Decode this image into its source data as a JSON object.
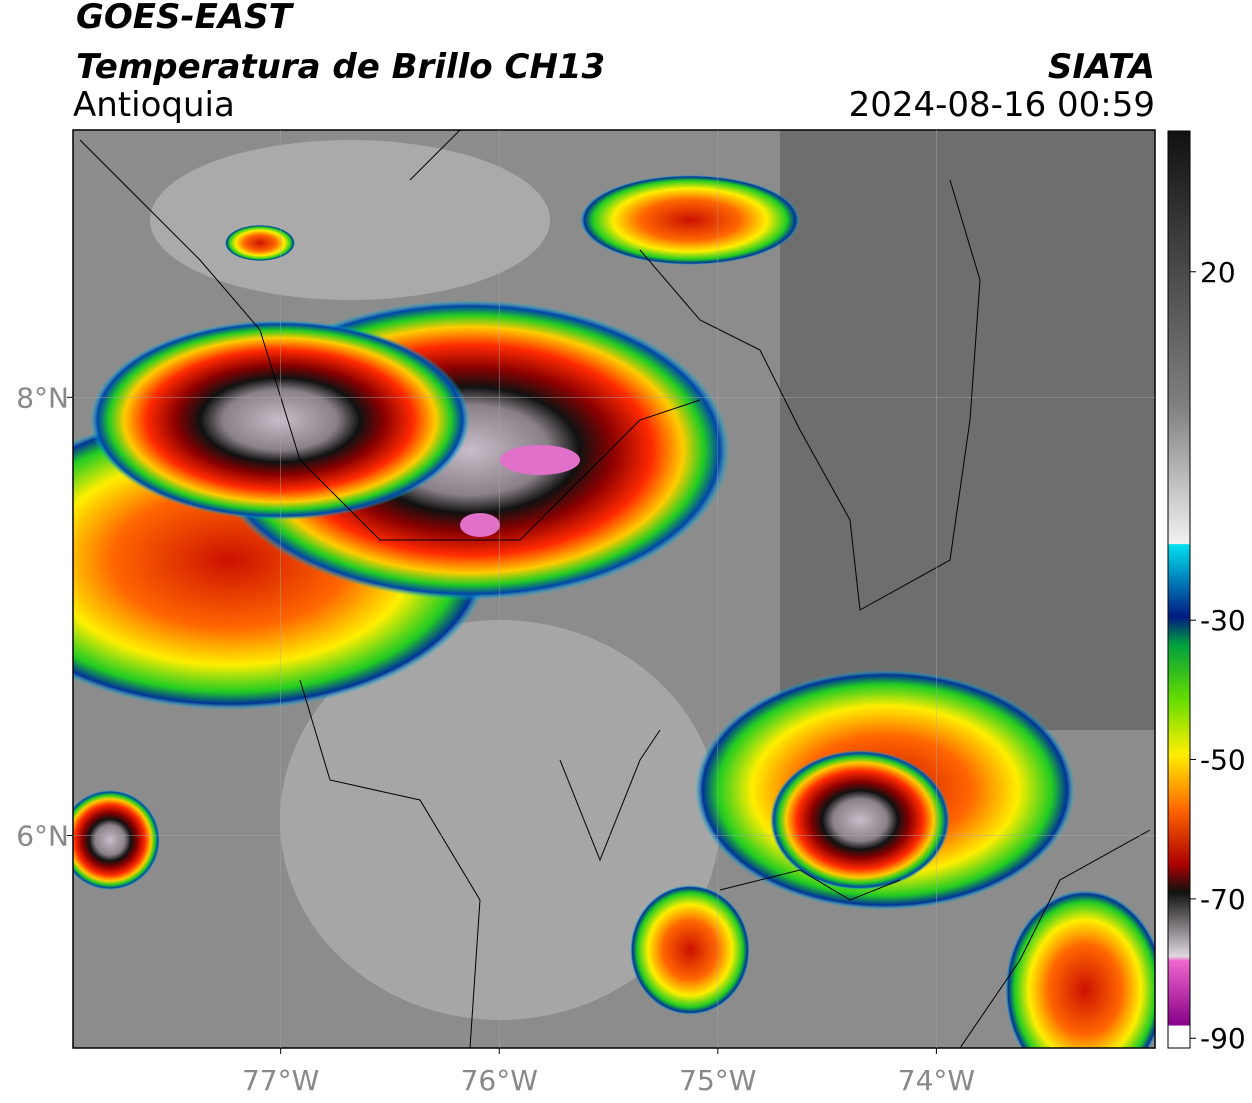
{
  "header": {
    "title": "GOES-EAST",
    "subtitle": "Temperatura de Brillo CH13",
    "region": "Antioquia",
    "agency": "SIATA",
    "datetime": "2024-08-16 00:59"
  },
  "map": {
    "xlim": [
      -77.95,
      -73.0
    ],
    "ylim": [
      5.03,
      9.22
    ],
    "xticks": [
      {
        "value": -77,
        "label": "77°W"
      },
      {
        "value": -76,
        "label": "76°W"
      },
      {
        "value": -75,
        "label": "75°W"
      },
      {
        "value": -74,
        "label": "74°W"
      }
    ],
    "yticks": [
      {
        "value": 8,
        "label": "8°N"
      },
      {
        "value": 6,
        "label": "6°N"
      }
    ]
  },
  "colorbar": {
    "lim": [
      -91.4,
      40.2
    ],
    "ticks": [
      20,
      -30,
      -50,
      -70,
      -90
    ]
  }
}
